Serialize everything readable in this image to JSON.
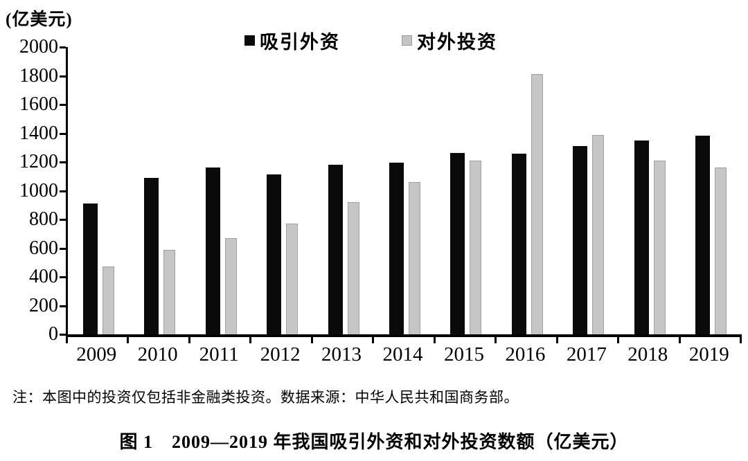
{
  "figure": {
    "unit_label": "(亿美元)",
    "note": "注：本图中的投资仅包括非金融类投资。数据来源：中华人民共和国商务部。",
    "caption": "图 1　2009—2019 年我国吸引外资和对外投资数额（亿美元）"
  },
  "legend": {
    "items": [
      {
        "label": "吸引外资",
        "color": "#0a0a0a"
      },
      {
        "label": "对外投资",
        "color": "#c4c4c4"
      }
    ]
  },
  "chart_data": {
    "type": "bar",
    "title": "图 1 2009—2019 年我国吸引外资和对外投资数额（亿美元）",
    "xlabel": "",
    "ylabel": "(亿美元)",
    "categories": [
      "2009",
      "2010",
      "2011",
      "2012",
      "2013",
      "2014",
      "2015",
      "2016",
      "2017",
      "2018",
      "2019"
    ],
    "series": [
      {
        "name": "吸引外资",
        "color": "#0a0a0a",
        "values": [
          910,
          1090,
          1160,
          1115,
          1180,
          1195,
          1265,
          1260,
          1310,
          1350,
          1385
        ]
      },
      {
        "name": "对外投资",
        "color": "#c6c6c6",
        "values": [
          470,
          590,
          670,
          770,
          920,
          1060,
          1210,
          1810,
          1390,
          1210,
          1160
        ]
      }
    ],
    "ylim": [
      0,
      2000
    ],
    "ytick_step": 200,
    "grid": false,
    "legend_position": "top-center",
    "note": "注：本图中的投资仅包括非金融类投资。数据来源：中华人民共和国商务部。"
  }
}
